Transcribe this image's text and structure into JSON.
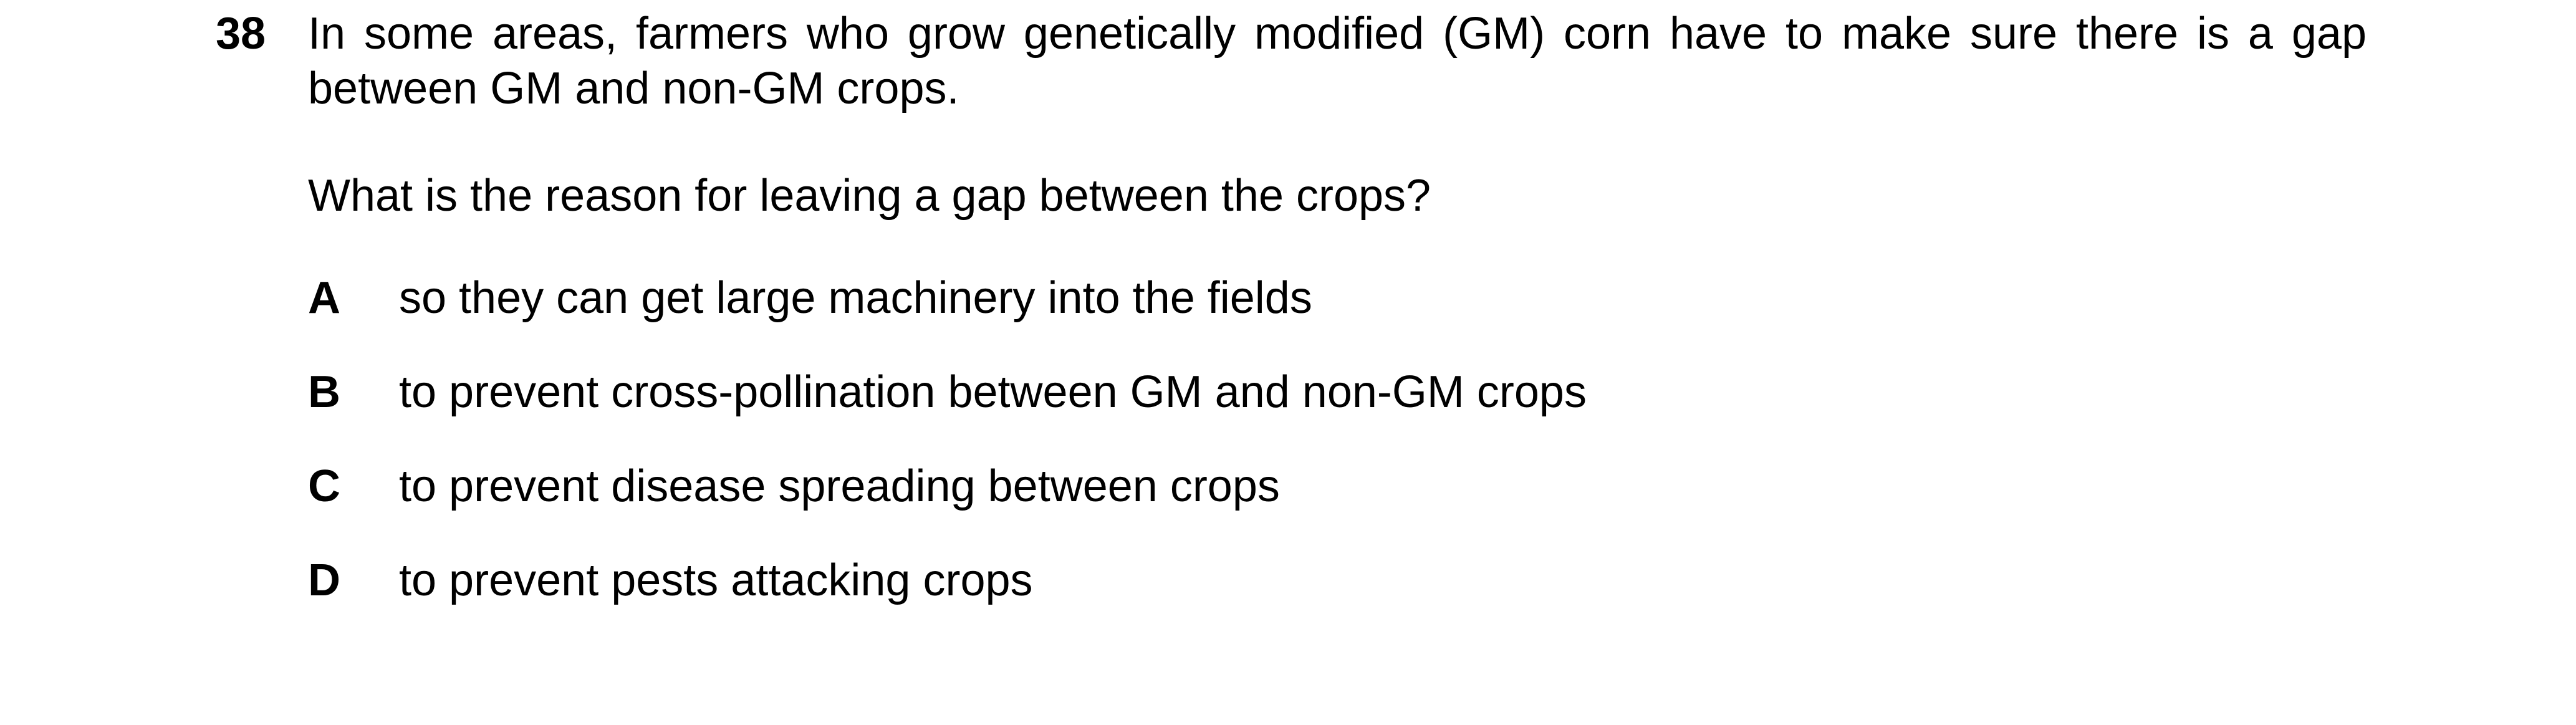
{
  "question": {
    "number": "38",
    "stem": "In some areas, farmers who grow genetically modified (GM) corn have to make sure there is a gap between GM and non-GM crops.",
    "prompt": "What is the reason for leaving a gap between the crops?",
    "options": [
      {
        "letter": "A",
        "text": "so they can get large machinery into the fields"
      },
      {
        "letter": "B",
        "text": "to prevent cross-pollination between GM and non-GM crops"
      },
      {
        "letter": "C",
        "text": "to prevent disease spreading between crops"
      },
      {
        "letter": "D",
        "text": "to prevent pests attacking crops"
      }
    ]
  }
}
